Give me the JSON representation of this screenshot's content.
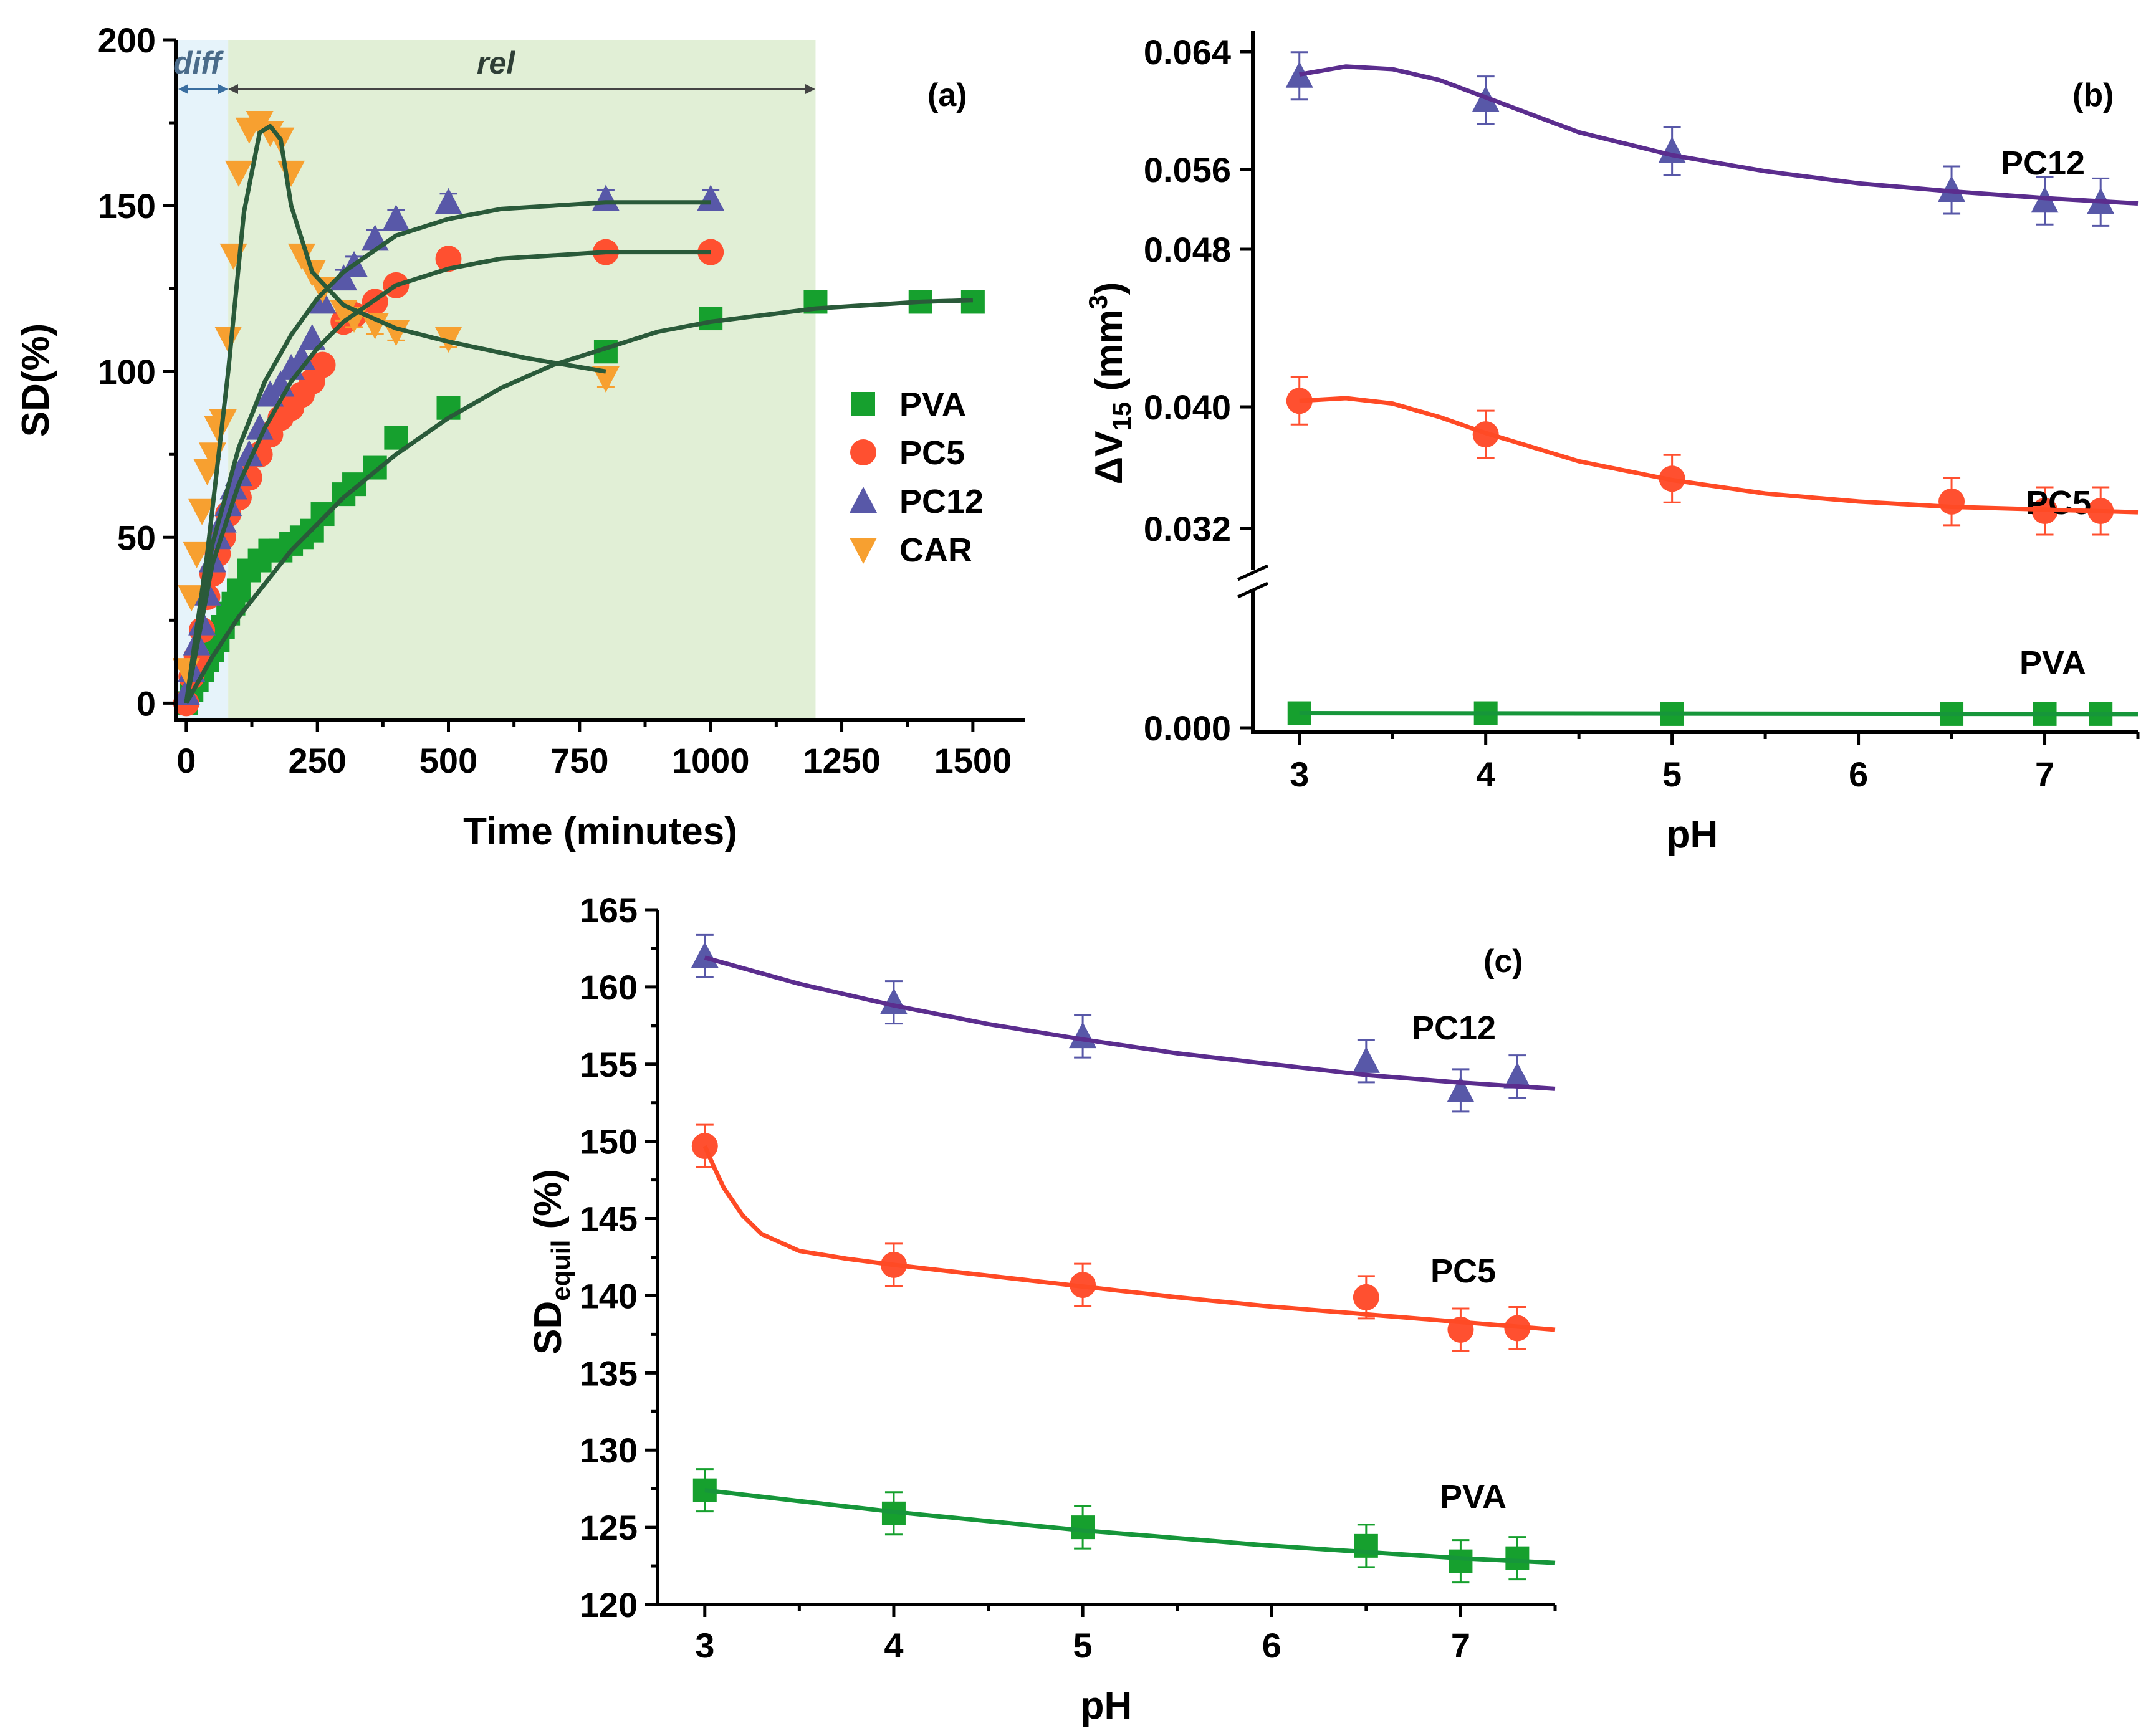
{
  "colors": {
    "PVA": "#16a02e",
    "PC5": "#ff5030",
    "PC12": "#5858a8",
    "CAR": "#f7a030",
    "fit_a": "#2a5a3a",
    "fit_pvab": "#16963a",
    "fit_pc12": "#5b2d8e",
    "fit_pc5": "#ff4a25",
    "diff_bg": "#e6f3fa",
    "rel_bg": "#e1efd6"
  },
  "chart_data": [
    {
      "id": "a",
      "type": "scatter",
      "panel_label": "(a)",
      "xlabel": "Time (minutes)",
      "ylabel": "SD(%)",
      "xlim": [
        -20,
        1600
      ],
      "ylim": [
        -5,
        200
      ],
      "xticks": [
        "0",
        "250",
        "500",
        "750",
        "1000",
        "1250",
        "1500"
      ],
      "yticks": [
        "0",
        "50",
        "100",
        "150",
        "200"
      ],
      "regions": [
        {
          "label": "diff",
          "x0": -20,
          "x1": 80
        },
        {
          "label": "rel",
          "x0": 80,
          "x1": 1200
        }
      ],
      "legend": [
        "PVA",
        "PC5",
        "PC12",
        "CAR"
      ],
      "series": [
        {
          "name": "PVA",
          "marker": "square",
          "x": [
            0,
            10,
            20,
            30,
            40,
            50,
            60,
            70,
            80,
            90,
            100,
            120,
            140,
            160,
            180,
            200,
            220,
            240,
            260,
            300,
            320,
            360,
            400,
            500,
            800,
            1000,
            1200,
            1400,
            1500
          ],
          "y": [
            0,
            4,
            7,
            10,
            13,
            16,
            19,
            23,
            27,
            30,
            34,
            40,
            43,
            46,
            46,
            48,
            50,
            52,
            57,
            63,
            66,
            71,
            80,
            89,
            106,
            116,
            121,
            121,
            121
          ]
        },
        {
          "name": "PC5",
          "marker": "circle",
          "x": [
            0,
            10,
            20,
            30,
            40,
            50,
            60,
            70,
            80,
            100,
            120,
            140,
            160,
            180,
            200,
            220,
            240,
            260,
            300,
            320,
            360,
            400,
            500,
            800,
            1000
          ],
          "y": [
            0,
            8,
            14,
            22,
            32,
            39,
            45,
            50,
            57,
            62,
            68,
            75,
            81,
            86,
            89,
            93,
            97,
            102,
            115,
            117,
            121,
            126,
            134,
            136,
            136
          ]
        },
        {
          "name": "PC12",
          "marker": "triangle",
          "x": [
            0,
            10,
            20,
            30,
            40,
            50,
            60,
            70,
            80,
            90,
            100,
            120,
            140,
            160,
            180,
            200,
            220,
            240,
            260,
            300,
            320,
            360,
            400,
            500,
            800,
            1000
          ],
          "y": [
            3,
            10,
            18,
            24,
            33,
            43,
            50,
            55,
            60,
            65,
            69,
            75,
            83,
            93,
            96,
            101,
            104,
            110,
            121,
            128,
            132,
            140,
            146,
            151,
            152,
            152
          ]
        },
        {
          "name": "CAR",
          "marker": "triangle-down",
          "x": [
            0,
            10,
            20,
            30,
            40,
            50,
            60,
            70,
            80,
            90,
            100,
            120,
            140,
            160,
            180,
            200,
            220,
            240,
            260,
            300,
            320,
            360,
            400,
            500,
            800
          ],
          "y": [
            10,
            32,
            45,
            58,
            70,
            75,
            83,
            85,
            110,
            135,
            160,
            173,
            175,
            172,
            170,
            160,
            135,
            130,
            125,
            118,
            116,
            114,
            112,
            110,
            98
          ]
        }
      ],
      "fits": [
        {
          "name": "PVA",
          "color_key": "fit_a",
          "x": [
            0,
            50,
            100,
            150,
            200,
            250,
            300,
            400,
            500,
            600,
            700,
            800,
            900,
            1000,
            1200,
            1400,
            1500
          ],
          "y": [
            0,
            14,
            26,
            36,
            46,
            54,
            62,
            75,
            86,
            95,
            102,
            107,
            112,
            115,
            119,
            121,
            121.5
          ]
        },
        {
          "name": "PC5",
          "color_key": "fit_a",
          "x": [
            0,
            50,
            100,
            150,
            200,
            250,
            300,
            400,
            500,
            600,
            700,
            800,
            900,
            1000
          ],
          "y": [
            0,
            42,
            66,
            83,
            97,
            107,
            115,
            126,
            131,
            134,
            135,
            136,
            136,
            136
          ]
        },
        {
          "name": "PC12",
          "color_key": "fit_a",
          "x": [
            0,
            50,
            100,
            150,
            200,
            250,
            300,
            400,
            500,
            600,
            700,
            800,
            900,
            1000
          ],
          "y": [
            0,
            48,
            77,
            97,
            111,
            122,
            130,
            141,
            146,
            149,
            150,
            151,
            151,
            151
          ]
        },
        {
          "name": "CAR",
          "color_key": "fit_a",
          "x": [
            0,
            40,
            80,
            110,
            140,
            160,
            180,
            200,
            240,
            300,
            400,
            500,
            650,
            800
          ],
          "y": [
            0,
            45,
            100,
            148,
            172,
            174,
            170,
            150,
            130,
            120,
            113,
            109,
            104,
            100
          ]
        }
      ]
    },
    {
      "id": "b",
      "type": "scatter",
      "panel_label": "(b)",
      "xlabel": "pH",
      "ylabel": "ΔV15 (mm3)",
      "xlim": [
        2.75,
        7.5
      ],
      "ylim": [
        0,
        0.065
      ],
      "axis_break": "between 0.0 and 0.028",
      "xticks": [
        "3",
        "4",
        "5",
        "6",
        "7"
      ],
      "yticks": [
        "0.000",
        "0.032",
        "0.040",
        "0.048",
        "0.056",
        "0.064"
      ],
      "series": [
        {
          "name": "PC12",
          "marker": "triangle",
          "x": [
            3,
            4,
            5,
            6.5,
            7,
            7.3
          ],
          "y": [
            0.0622,
            0.0604,
            0.0566,
            0.0537,
            0.0529,
            0.0528
          ]
        },
        {
          "name": "PC5",
          "marker": "circle",
          "x": [
            3,
            4,
            5,
            6.5,
            7,
            7.3
          ],
          "y": [
            0.038,
            0.0355,
            0.0322,
            0.0305,
            0.0298,
            0.0298
          ]
        },
        {
          "name": "PVA",
          "marker": "square",
          "x": [
            3,
            4,
            5,
            6.5,
            7,
            7.3
          ],
          "y": [
            0.0017,
            0.0017,
            0.0016,
            0.0016,
            0.0016,
            0.0016
          ]
        }
      ],
      "fits": [
        {
          "name": "PC12",
          "color_key": "fit_pc12",
          "x": [
            3,
            3.25,
            3.5,
            3.75,
            4,
            4.5,
            5,
            5.5,
            6,
            6.5,
            7,
            7.5
          ],
          "y": [
            0.0623,
            0.0629,
            0.0627,
            0.0619,
            0.0606,
            0.058,
            0.0563,
            0.0551,
            0.0542,
            0.0536,
            0.0531,
            0.0527
          ]
        },
        {
          "name": "PC5",
          "color_key": "fit_pc5",
          "x": [
            3,
            3.25,
            3.5,
            3.75,
            4,
            4.5,
            5,
            5.5,
            6,
            6.5,
            7,
            7.5
          ],
          "y": [
            0.038,
            0.0382,
            0.0378,
            0.0368,
            0.0356,
            0.0335,
            0.0321,
            0.0311,
            0.0305,
            0.0301,
            0.0299,
            0.0297
          ]
        },
        {
          "name": "PVA",
          "color_key": "fit_pvab",
          "x": [
            3,
            7.5
          ],
          "y": [
            0.0017,
            0.0016
          ]
        }
      ],
      "labels": [
        "PC12",
        "PC5",
        "PVA"
      ]
    },
    {
      "id": "c",
      "type": "scatter",
      "panel_label": "(c)",
      "xlabel": "pH",
      "ylabel": "SDequil (%)",
      "xlim": [
        2.75,
        7.5
      ],
      "ylim": [
        120,
        165
      ],
      "xticks": [
        "3",
        "4",
        "5",
        "6",
        "7"
      ],
      "yticks": [
        "120",
        "125",
        "130",
        "135",
        "140",
        "145",
        "150",
        "155",
        "160",
        "165"
      ],
      "series": [
        {
          "name": "PC12",
          "marker": "triangle",
          "x": [
            3,
            4,
            5,
            6.5,
            7,
            7.3
          ],
          "y": [
            162,
            159,
            156.8,
            155.2,
            153.3,
            154.2
          ]
        },
        {
          "name": "PC5",
          "marker": "circle",
          "x": [
            3,
            4,
            5,
            6.5,
            7,
            7.3
          ],
          "y": [
            149.7,
            142,
            140.7,
            139.9,
            137.8,
            137.9
          ]
        },
        {
          "name": "PVA",
          "marker": "square",
          "x": [
            3,
            4,
            5,
            6.5,
            7,
            7.3
          ],
          "y": [
            127.4,
            125.9,
            125,
            123.8,
            122.8,
            123
          ]
        }
      ],
      "fits": [
        {
          "name": "PC12",
          "color_key": "fit_pc12",
          "x": [
            3,
            3.5,
            4,
            4.5,
            5,
            5.5,
            6,
            6.5,
            7,
            7.5
          ],
          "y": [
            161.9,
            160.2,
            158.8,
            157.6,
            156.6,
            155.7,
            155,
            154.3,
            153.8,
            153.4
          ]
        },
        {
          "name": "PC5",
          "color_key": "fit_pc5",
          "x": [
            3,
            3.05,
            3.1,
            3.2,
            3.3,
            3.5,
            3.75,
            4,
            4.5,
            5,
            5.5,
            6,
            6.5,
            7,
            7.5
          ],
          "y": [
            149.7,
            148.3,
            147,
            145.2,
            144,
            142.9,
            142.4,
            142,
            141.3,
            140.6,
            139.9,
            139.3,
            138.8,
            138.3,
            137.8
          ]
        },
        {
          "name": "PVA",
          "color_key": "fit_pvab",
          "x": [
            3,
            3.5,
            4,
            4.5,
            5,
            5.5,
            6,
            6.5,
            7,
            7.5
          ],
          "y": [
            127.4,
            126.7,
            126,
            125.4,
            124.8,
            124.3,
            123.8,
            123.4,
            123,
            122.7
          ]
        }
      ],
      "labels": [
        "PC12",
        "PC5",
        "PVA"
      ]
    }
  ],
  "text": {
    "a_panel": "(a)",
    "a_xlabel": "Time (minutes)",
    "a_ylabel": "SD(%)",
    "a_diff": "diff",
    "a_rel": "rel",
    "b_panel": "(b)",
    "b_xlabel": "pH",
    "b_ylabel_main": "ΔV",
    "b_ylabel_sub": "15",
    "b_ylabel_unit": " (mm",
    "b_ylabel_sup": "3",
    "b_ylabel_close": ")",
    "c_panel": "(c)",
    "c_xlabel": "pH",
    "c_ylabel_main": "SD",
    "c_ylabel_sub": "equil",
    "c_ylabel_unit": " (%)"
  }
}
